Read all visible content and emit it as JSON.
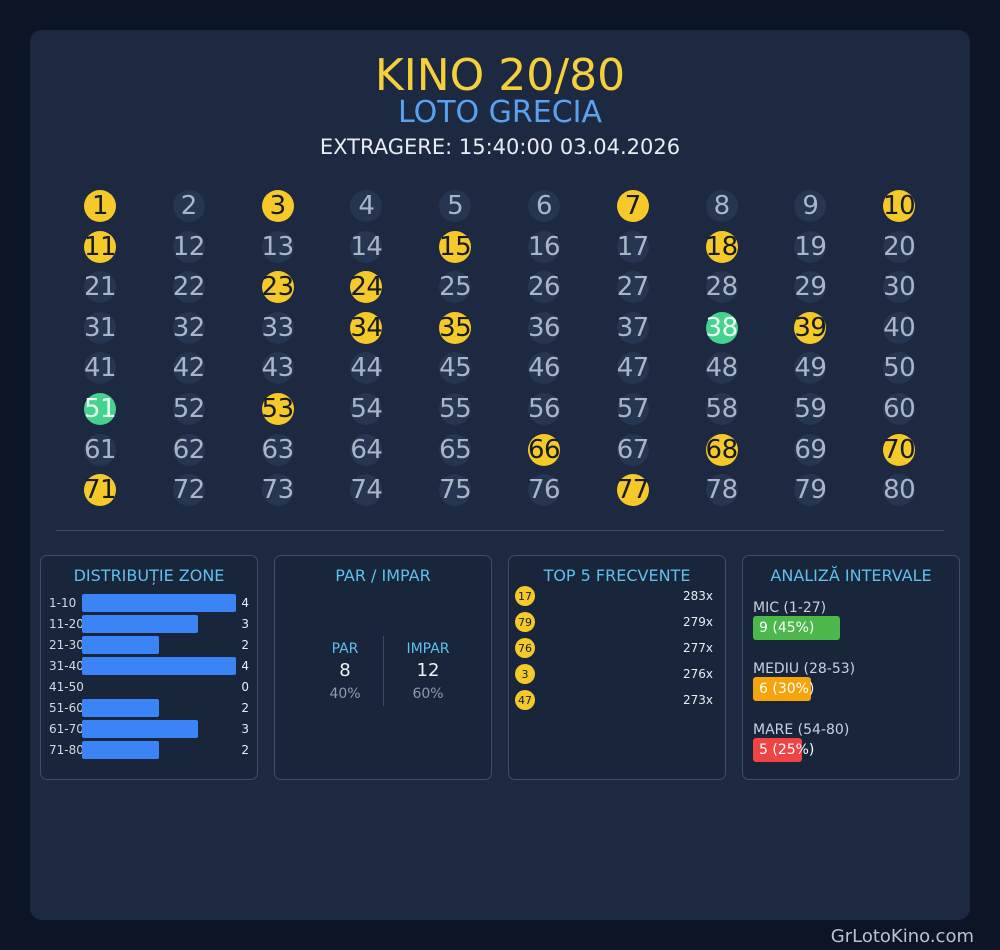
{
  "header": {
    "title": "KINO 20/80",
    "subtitle": "LOTO GRECIA",
    "draw": "EXTRAGERE: 15:40:00 03.04.2026"
  },
  "grid": {
    "hits": [
      1,
      3,
      7,
      10,
      11,
      15,
      18,
      23,
      24,
      34,
      35,
      39,
      53,
      66,
      68,
      70,
      71,
      77
    ],
    "bonus": [
      38,
      51
    ]
  },
  "zones": {
    "title": "DISTRIBUȚIE ZONE",
    "items": [
      {
        "label": "1-10",
        "count": 4
      },
      {
        "label": "11-20",
        "count": 3
      },
      {
        "label": "21-30",
        "count": 2
      },
      {
        "label": "31-40",
        "count": 4
      },
      {
        "label": "41-50",
        "count": 0
      },
      {
        "label": "51-60",
        "count": 2
      },
      {
        "label": "61-70",
        "count": 3
      },
      {
        "label": "71-80",
        "count": 2
      }
    ]
  },
  "parity": {
    "title": "PAR / IMPAR",
    "even_label": "PAR",
    "even_value": "8",
    "even_pct": "40%",
    "odd_label": "IMPAR",
    "odd_value": "12",
    "odd_pct": "60%"
  },
  "top5": {
    "title": "TOP 5 FRECVENTE",
    "items": [
      {
        "number": "17",
        "count": "283x"
      },
      {
        "number": "79",
        "count": "279x"
      },
      {
        "number": "76",
        "count": "277x"
      },
      {
        "number": "3",
        "count": "276x"
      },
      {
        "number": "47",
        "count": "273x"
      }
    ]
  },
  "intervals": {
    "title": "ANALIZĂ INTERVALE",
    "items": [
      {
        "label": "MIC (1-27)",
        "value": "9 (45%)",
        "fraction": 0.45,
        "color": "#4cb84c"
      },
      {
        "label": "MEDIU (28-53)",
        "value": "6 (30%)",
        "fraction": 0.3,
        "color": "#f5a40c"
      },
      {
        "label": "MARE (54-80)",
        "value": "5 (25%)",
        "fraction": 0.25,
        "color": "#ef4444"
      }
    ]
  },
  "footer": "GrLotoKino.com"
}
